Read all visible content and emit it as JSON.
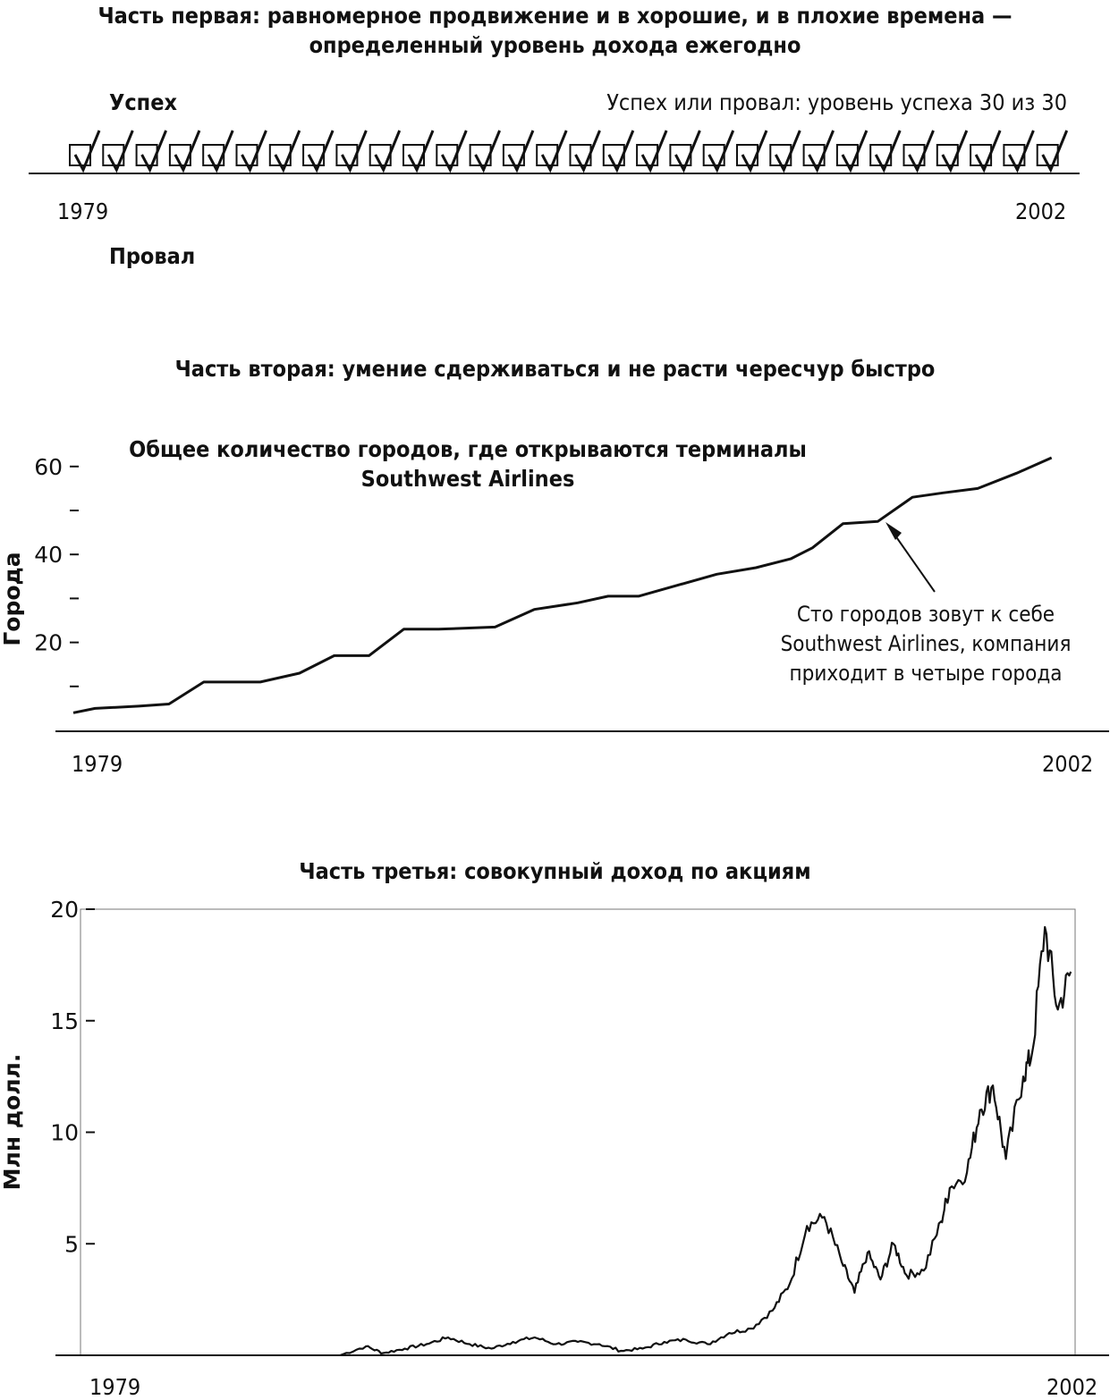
{
  "part1": {
    "title_line1": "Часть первая: равномерное продвижение и в хорошие, и в плохие времена —",
    "title_line2": "определенный уровень дохода ежегодно",
    "success_label": "Успех",
    "failure_label": "Провал",
    "note": "Успех или провал: уровень успеха 30 из 30",
    "start_year": "1979",
    "end_year": "2002",
    "checkbox_count": 30,
    "checked_count": 30
  },
  "part2": {
    "section_title": "Часть вторая: умение сдерживаться и не расти чересчур быстро",
    "chart_title_line1": "Общее количество городов, где открываются терминалы",
    "chart_title_line2": "Southwest Airlines",
    "ylabel": "Города",
    "yticks": [
      "20",
      "40",
      "60"
    ],
    "start_year": "1979",
    "end_year": "2002",
    "annotation_line1": "Сто городов зовут к себе",
    "annotation_line2": "Southwest Airlines, компания",
    "annotation_line3": "приходит в четыре города"
  },
  "part3": {
    "title": "Часть третья: совокупный доход по акциям",
    "ylabel": "Млн долл.",
    "yticks": [
      "5",
      "10",
      "15",
      "20"
    ],
    "start_year": "1979",
    "end_year": "2002"
  },
  "chart_data": [
    {
      "type": "line",
      "title": "Общее количество городов, где открываются терминалы Southwest Airlines",
      "ylabel": "Города",
      "ylim": [
        0,
        65
      ],
      "xlim": [
        1979,
        2002
      ],
      "series": [
        {
          "x": [
            1979,
            1979.5,
            1980.5,
            1981.2,
            1982,
            1983.3,
            1984.2,
            1985,
            1985.8,
            1986.6,
            1987.4,
            1988.7,
            1989.6,
            1990.6,
            1991.3,
            1992,
            1992.9,
            1993.8,
            1994.7,
            1995.5,
            1996,
            1996.7,
            1997.5,
            1998.3,
            1999,
            1999.8,
            2000.7,
            2001.5
          ],
          "y": [
            4,
            5,
            5.5,
            6,
            11,
            11,
            13,
            17,
            17,
            23,
            23,
            23.5,
            27.5,
            29,
            30.5,
            30.5,
            33,
            35.5,
            37,
            39,
            41.5,
            47,
            47.5,
            53,
            54,
            55,
            58.5,
            62
          ]
        }
      ],
      "annotation": "Сто городов зовут к себе Southwest Airlines, компания приходит в четыре города"
    },
    {
      "type": "line",
      "title": "Часть третья: совокупный доход по акциям",
      "ylabel": "Млн долл.",
      "ylim": [
        0,
        20
      ],
      "xlim": [
        1979,
        2002
      ],
      "series": [
        {
          "x": [
            1985.0,
            1985.6,
            1986.0,
            1986.5,
            1987.0,
            1987.5,
            1988.0,
            1988.5,
            1989.0,
            1989.5,
            1990.0,
            1990.5,
            1991.0,
            1991.5,
            1992.0,
            1992.5,
            1993.0,
            1993.5,
            1994.0,
            1994.5,
            1995.0,
            1995.4,
            1995.8,
            1996.2,
            1996.6,
            1996.9,
            1997.2,
            1997.5,
            1997.8,
            1998.1,
            1998.5,
            1998.9,
            1999.1,
            1999.5,
            1999.8,
            2000.1,
            2000.4,
            2000.8,
            2001.0,
            2001.3,
            2001.6,
            2001.9
          ],
          "y": [
            0.0,
            0.4,
            0.1,
            0.3,
            0.5,
            0.8,
            0.5,
            0.3,
            0.6,
            0.8,
            0.5,
            0.6,
            0.5,
            0.2,
            0.3,
            0.6,
            0.7,
            0.5,
            1.0,
            1.2,
            2.0,
            3.2,
            5.8,
            6.2,
            4.2,
            2.8,
            4.6,
            3.4,
            5.0,
            3.6,
            3.8,
            6.0,
            7.5,
            8.2,
            11.0,
            12.1,
            8.8,
            12.5,
            13.5,
            19.2,
            15.5,
            17.2
          ]
        }
      ]
    }
  ]
}
